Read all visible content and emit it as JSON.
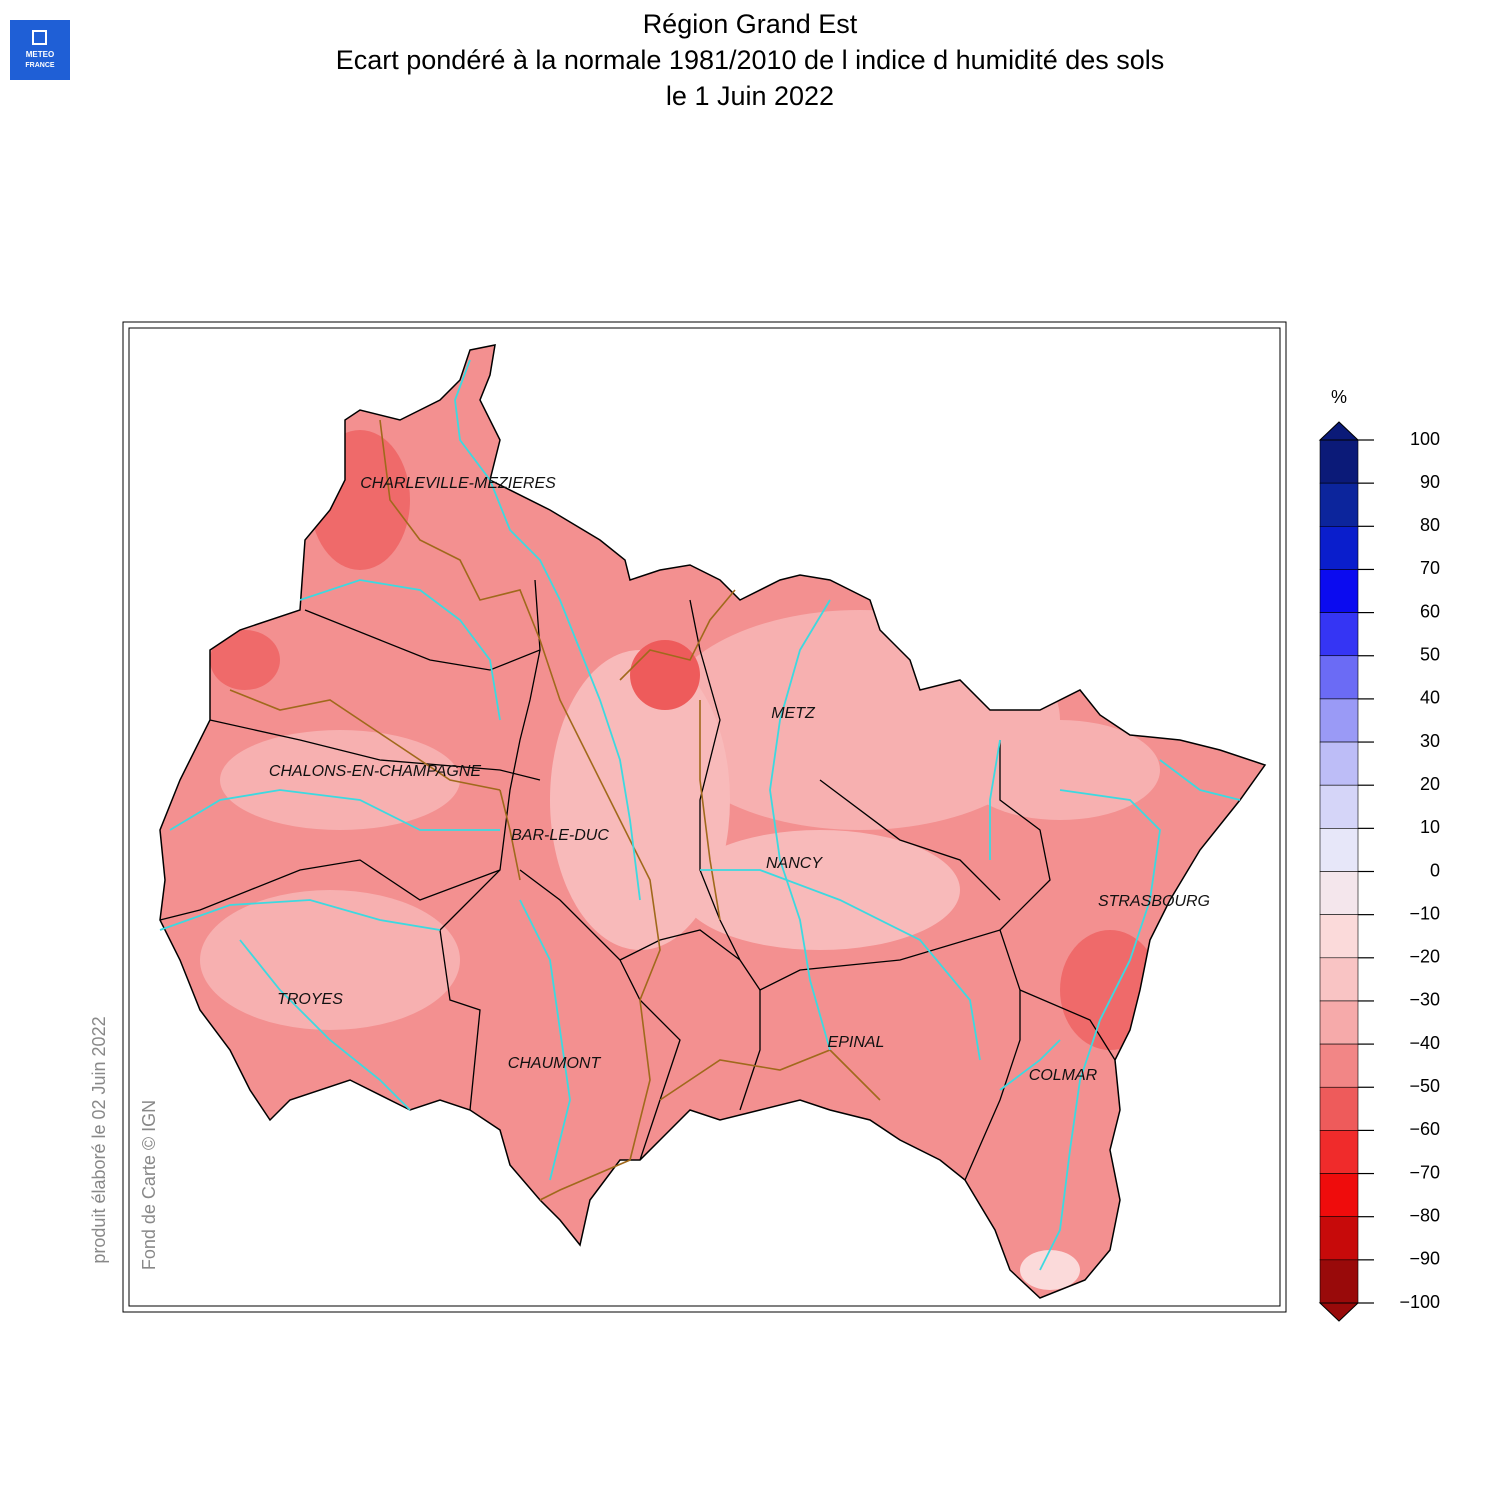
{
  "header": {
    "title": [
      "Région Grand Est",
      "Ecart pondéré à la normale 1981/2010 de l indice d humidité des sols",
      "le 1 Juin 2022"
    ]
  },
  "logo": {
    "lines": [
      "METEO",
      "FRANCE"
    ]
  },
  "cities": [
    "CHARLEVILLE-MEZIERES",
    "METZ",
    "CHALONS-EN-CHAMPAGNE",
    "BAR-LE-DUC",
    "NANCY",
    "STRASBOURG",
    "TROYES",
    "EPINAL",
    "CHAUMONT",
    "COLMAR"
  ],
  "credits": [
    "produit élaboré le 02 Juin 2022",
    "Fond de Carte © IGN"
  ],
  "colorbar": {
    "unit": "%",
    "ticks": [
      100,
      90,
      80,
      70,
      60,
      50,
      40,
      30,
      20,
      10,
      0,
      {
        "value": -10,
        "label": "−10"
      },
      {
        "value": -20,
        "label": "−20"
      },
      {
        "value": -30,
        "label": "−30"
      },
      {
        "value": -40,
        "label": "−40"
      },
      {
        "value": -50,
        "label": "−50"
      },
      {
        "value": -60,
        "label": "−60"
      },
      {
        "value": -70,
        "label": "−70"
      },
      {
        "value": -80,
        "label": "−80"
      },
      {
        "value": -90,
        "label": "−90"
      },
      {
        "value": -100,
        "label": "−100"
      }
    ],
    "colors": [
      "#0b1a78",
      "#0c259c",
      "#0a1ecc",
      "#0b0bf0",
      "#3535f4",
      "#6b6bf5",
      "#9a9af6",
      "#bdbdf7",
      "#d5d5f8",
      "#e7e7f9",
      "#f4e6ec",
      "#fbdada",
      "#f9c4c4",
      "#f6aaaa",
      "#f28686",
      "#ee5b5b",
      "#f02b2b",
      "#ef0c0c",
      "#c70a0a",
      "#990a0a"
    ]
  }
}
